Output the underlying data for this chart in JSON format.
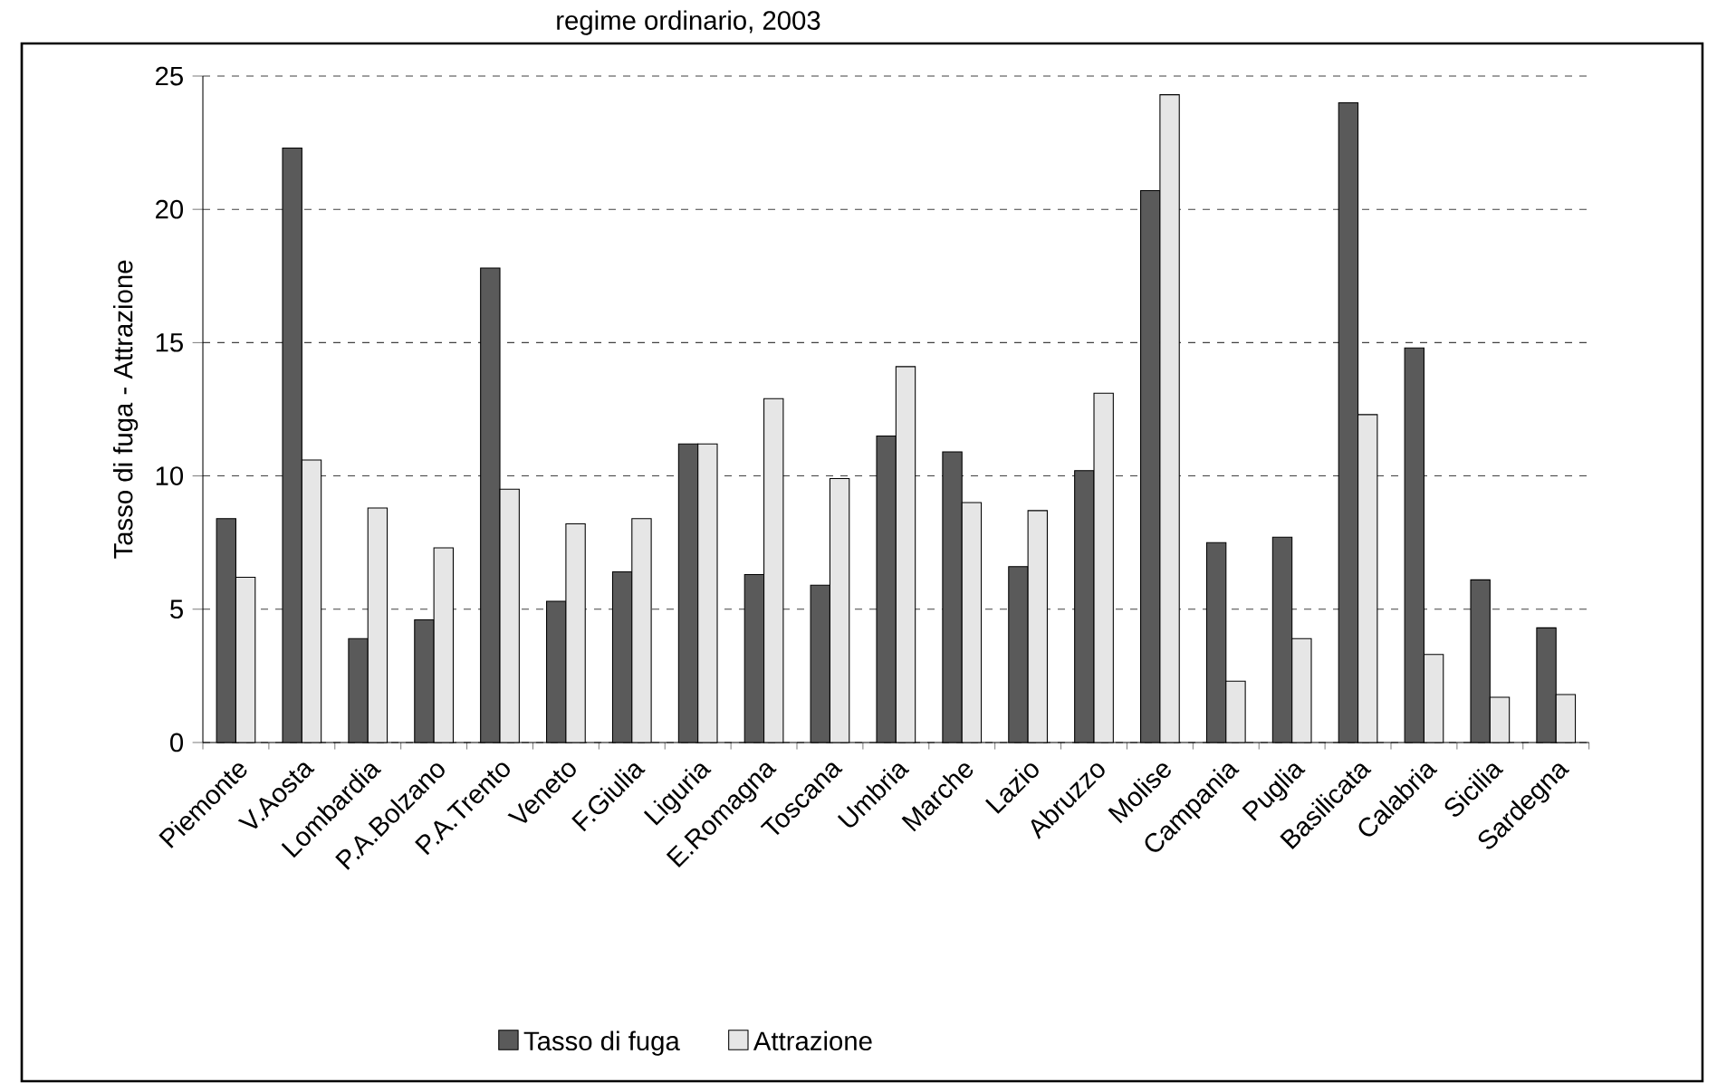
{
  "chart_data": {
    "type": "bar",
    "title": "regime ordinario, 2003",
    "ylabel": "Tasso di fuga - Attrazione",
    "categories": [
      "Piemonte",
      "V.Aosta",
      "Lombardia",
      "P.A.Bolzano",
      "P.A.Trento",
      "Veneto",
      "F.Giulia",
      "Liguria",
      "E.Romagna",
      "Toscana",
      "Umbria",
      "Marche",
      "Lazio",
      "Abruzzo",
      "Molise",
      "Campania",
      "Puglia",
      "Basilicata",
      "Calabria",
      "Sicilia",
      "Sardegna"
    ],
    "series": [
      {
        "name": "Tasso di fuga",
        "color": "#5a5a5a",
        "values": [
          8.4,
          22.3,
          3.9,
          4.6,
          17.8,
          5.3,
          6.4,
          11.2,
          6.3,
          5.9,
          11.5,
          10.9,
          6.6,
          10.2,
          20.7,
          7.5,
          7.7,
          24.0,
          14.8,
          6.1,
          4.3
        ]
      },
      {
        "name": "Attrazione",
        "color": "#e6e6e6",
        "values": [
          6.2,
          10.6,
          8.8,
          7.3,
          9.5,
          8.2,
          8.4,
          11.2,
          12.9,
          9.9,
          14.1,
          9.0,
          8.7,
          13.1,
          24.3,
          2.3,
          3.9,
          12.3,
          3.3,
          1.7,
          1.8
        ]
      }
    ],
    "ylim": [
      0,
      25
    ],
    "yticks": [
      0,
      5,
      10,
      15,
      20,
      25
    ],
    "grid": "y",
    "legend": "bottom"
  }
}
